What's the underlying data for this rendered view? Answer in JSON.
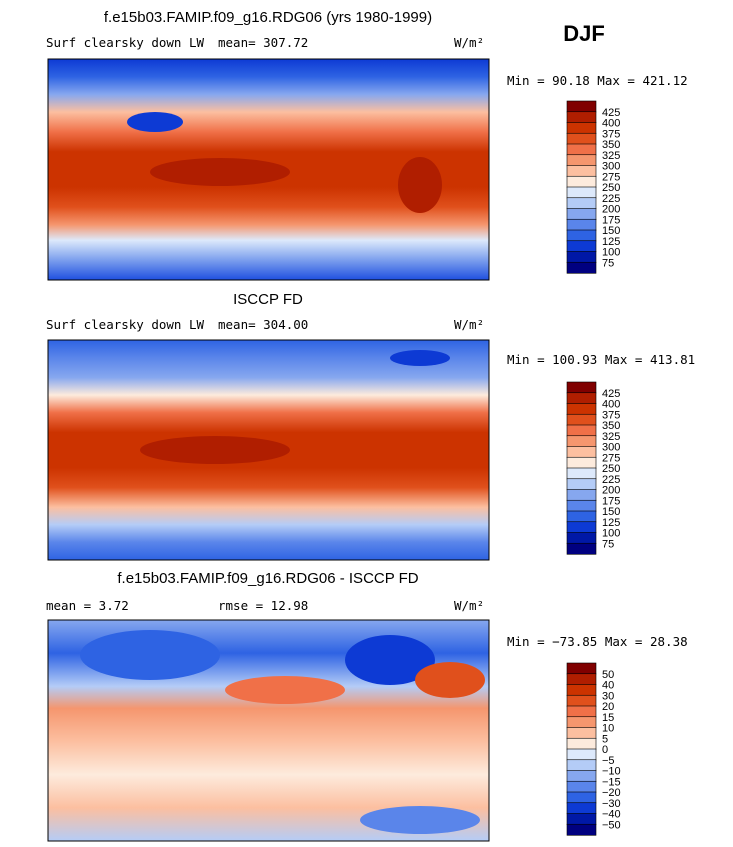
{
  "season": "DJF",
  "chart_data": [
    {
      "type": "heatmap",
      "title": "f.e15b03.FAMIP.f09_g16.RDG06 (yrs 1980-1999)",
      "variable": "Surf clearsky down LW",
      "mean_label": "mean= 307.72",
      "units": "W/m²",
      "minmax_label": "Min =  90.18 Max = 421.12",
      "colorbar": {
        "levels": [
          "425",
          "400",
          "375",
          "350",
          "325",
          "300",
          "275",
          "250",
          "225",
          "200",
          "175",
          "150",
          "125",
          "100",
          "75"
        ],
        "colors": [
          "#800000",
          "#b01e00",
          "#cc3300",
          "#e0501c",
          "#f07048",
          "#f5966e",
          "#fcbfa0",
          "#fdebdd",
          "#dde9fb",
          "#b4ccf7",
          "#86a7ef",
          "#5a85ea",
          "#2e63e3",
          "#0d3ad4",
          "#0018a6",
          "#000080"
        ]
      }
    },
    {
      "type": "heatmap",
      "title": "ISCCP FD",
      "variable": "Surf clearsky down LW",
      "mean_label": "mean= 304.00",
      "units": "W/m²",
      "minmax_label": "Min = 100.93 Max = 413.81",
      "colorbar": {
        "levels": [
          "425",
          "400",
          "375",
          "350",
          "325",
          "300",
          "275",
          "250",
          "225",
          "200",
          "175",
          "150",
          "125",
          "100",
          "75"
        ],
        "colors": [
          "#800000",
          "#b01e00",
          "#cc3300",
          "#e0501c",
          "#f07048",
          "#f5966e",
          "#fcbfa0",
          "#fdebdd",
          "#dde9fb",
          "#b4ccf7",
          "#86a7ef",
          "#5a85ea",
          "#2e63e3",
          "#0d3ad4",
          "#0018a6",
          "#000080"
        ]
      }
    },
    {
      "type": "heatmap",
      "title": "f.e15b03.FAMIP.f09_g16.RDG06 - ISCCP FD",
      "mean_label": "mean =   3.72",
      "rmse_label": "rmse =  12.98",
      "units": "W/m²",
      "minmax_label": "Min = −73.85 Max =  28.38",
      "colorbar": {
        "levels": [
          "50",
          "40",
          "30",
          "20",
          "15",
          "10",
          "5",
          "0",
          "−5",
          "−10",
          "−15",
          "−20",
          "−30",
          "−40",
          "−50"
        ],
        "colors": [
          "#800000",
          "#b01e00",
          "#cc3300",
          "#e0501c",
          "#f07048",
          "#f5966e",
          "#fcbfa0",
          "#fdebdd",
          "#dde9fb",
          "#b4ccf7",
          "#86a7ef",
          "#5a85ea",
          "#2e63e3",
          "#0d3ad4",
          "#0018a6",
          "#000080"
        ]
      }
    }
  ]
}
